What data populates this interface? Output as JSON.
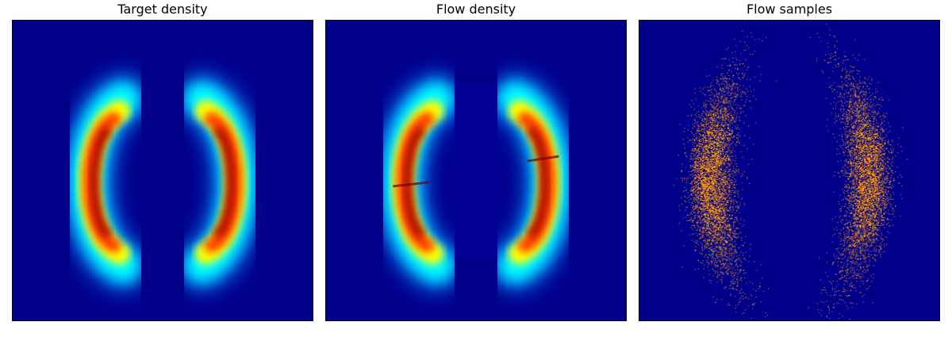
{
  "chart_data": [
    {
      "type": "heatmap",
      "title": "Target density",
      "colormap": "jet",
      "background_color": "#00008b",
      "xlim": [
        -4,
        4
      ],
      "ylim": [
        -4,
        4
      ],
      "grid": false,
      "ticks": false,
      "distribution": "two mirrored crescent modes (left and right)"
    },
    {
      "type": "heatmap",
      "title": "Flow density",
      "colormap": "jet",
      "background_color": "#00008b",
      "xlim": [
        -4,
        4
      ],
      "ylim": [
        -4,
        4
      ],
      "grid": false,
      "ticks": false,
      "distribution": "two mirrored crescent modes with faint seam artifacts"
    },
    {
      "type": "heatmap",
      "title": "Flow samples",
      "colormap": "jet",
      "background_color": "#00008b",
      "xlim": [
        -4,
        4
      ],
      "ylim": [
        -4,
        4
      ],
      "grid": false,
      "ticks": false,
      "distribution": "2D histogram of samples, noisy crescents"
    }
  ]
}
